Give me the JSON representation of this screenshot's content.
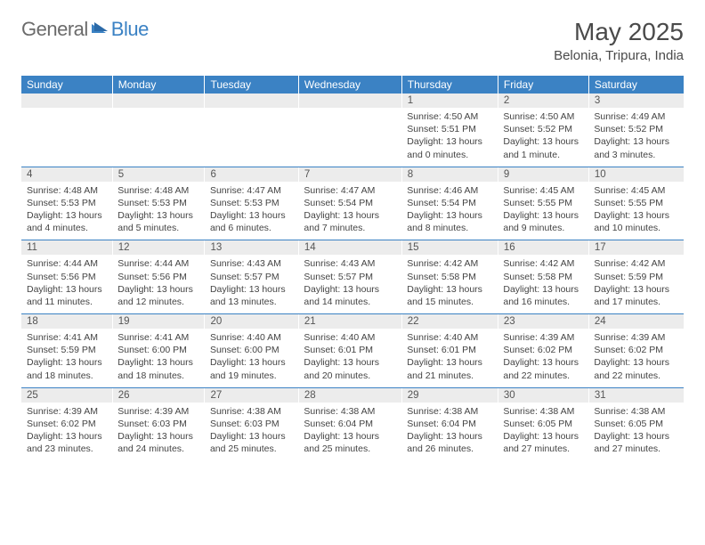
{
  "brand": {
    "word1": "General",
    "word2": "Blue"
  },
  "title": "May 2025",
  "location": "Belonia, Tripura, India",
  "colors": {
    "header_bg": "#3b82c4",
    "header_text": "#ffffff",
    "dayhead_bg": "#ececec",
    "page_bg": "#ffffff",
    "rule": "#3b82c4",
    "logo_gray": "#6b6b6b",
    "logo_blue": "#3b82c4"
  },
  "dow": [
    "Sunday",
    "Monday",
    "Tuesday",
    "Wednesday",
    "Thursday",
    "Friday",
    "Saturday"
  ],
  "weeks": [
    [
      null,
      null,
      null,
      null,
      {
        "n": "1",
        "sr": "4:50 AM",
        "ss": "5:51 PM",
        "dl": "13 hours and 0 minutes."
      },
      {
        "n": "2",
        "sr": "4:50 AM",
        "ss": "5:52 PM",
        "dl": "13 hours and 1 minute."
      },
      {
        "n": "3",
        "sr": "4:49 AM",
        "ss": "5:52 PM",
        "dl": "13 hours and 3 minutes."
      }
    ],
    [
      {
        "n": "4",
        "sr": "4:48 AM",
        "ss": "5:53 PM",
        "dl": "13 hours and 4 minutes."
      },
      {
        "n": "5",
        "sr": "4:48 AM",
        "ss": "5:53 PM",
        "dl": "13 hours and 5 minutes."
      },
      {
        "n": "6",
        "sr": "4:47 AM",
        "ss": "5:53 PM",
        "dl": "13 hours and 6 minutes."
      },
      {
        "n": "7",
        "sr": "4:47 AM",
        "ss": "5:54 PM",
        "dl": "13 hours and 7 minutes."
      },
      {
        "n": "8",
        "sr": "4:46 AM",
        "ss": "5:54 PM",
        "dl": "13 hours and 8 minutes."
      },
      {
        "n": "9",
        "sr": "4:45 AM",
        "ss": "5:55 PM",
        "dl": "13 hours and 9 minutes."
      },
      {
        "n": "10",
        "sr": "4:45 AM",
        "ss": "5:55 PM",
        "dl": "13 hours and 10 minutes."
      }
    ],
    [
      {
        "n": "11",
        "sr": "4:44 AM",
        "ss": "5:56 PM",
        "dl": "13 hours and 11 minutes."
      },
      {
        "n": "12",
        "sr": "4:44 AM",
        "ss": "5:56 PM",
        "dl": "13 hours and 12 minutes."
      },
      {
        "n": "13",
        "sr": "4:43 AM",
        "ss": "5:57 PM",
        "dl": "13 hours and 13 minutes."
      },
      {
        "n": "14",
        "sr": "4:43 AM",
        "ss": "5:57 PM",
        "dl": "13 hours and 14 minutes."
      },
      {
        "n": "15",
        "sr": "4:42 AM",
        "ss": "5:58 PM",
        "dl": "13 hours and 15 minutes."
      },
      {
        "n": "16",
        "sr": "4:42 AM",
        "ss": "5:58 PM",
        "dl": "13 hours and 16 minutes."
      },
      {
        "n": "17",
        "sr": "4:42 AM",
        "ss": "5:59 PM",
        "dl": "13 hours and 17 minutes."
      }
    ],
    [
      {
        "n": "18",
        "sr": "4:41 AM",
        "ss": "5:59 PM",
        "dl": "13 hours and 18 minutes."
      },
      {
        "n": "19",
        "sr": "4:41 AM",
        "ss": "6:00 PM",
        "dl": "13 hours and 18 minutes."
      },
      {
        "n": "20",
        "sr": "4:40 AM",
        "ss": "6:00 PM",
        "dl": "13 hours and 19 minutes."
      },
      {
        "n": "21",
        "sr": "4:40 AM",
        "ss": "6:01 PM",
        "dl": "13 hours and 20 minutes."
      },
      {
        "n": "22",
        "sr": "4:40 AM",
        "ss": "6:01 PM",
        "dl": "13 hours and 21 minutes."
      },
      {
        "n": "23",
        "sr": "4:39 AM",
        "ss": "6:02 PM",
        "dl": "13 hours and 22 minutes."
      },
      {
        "n": "24",
        "sr": "4:39 AM",
        "ss": "6:02 PM",
        "dl": "13 hours and 22 minutes."
      }
    ],
    [
      {
        "n": "25",
        "sr": "4:39 AM",
        "ss": "6:02 PM",
        "dl": "13 hours and 23 minutes."
      },
      {
        "n": "26",
        "sr": "4:39 AM",
        "ss": "6:03 PM",
        "dl": "13 hours and 24 minutes."
      },
      {
        "n": "27",
        "sr": "4:38 AM",
        "ss": "6:03 PM",
        "dl": "13 hours and 25 minutes."
      },
      {
        "n": "28",
        "sr": "4:38 AM",
        "ss": "6:04 PM",
        "dl": "13 hours and 25 minutes."
      },
      {
        "n": "29",
        "sr": "4:38 AM",
        "ss": "6:04 PM",
        "dl": "13 hours and 26 minutes."
      },
      {
        "n": "30",
        "sr": "4:38 AM",
        "ss": "6:05 PM",
        "dl": "13 hours and 27 minutes."
      },
      {
        "n": "31",
        "sr": "4:38 AM",
        "ss": "6:05 PM",
        "dl": "13 hours and 27 minutes."
      }
    ]
  ],
  "labels": {
    "sunrise": "Sunrise: ",
    "sunset": "Sunset: ",
    "daylight": "Daylight: "
  }
}
